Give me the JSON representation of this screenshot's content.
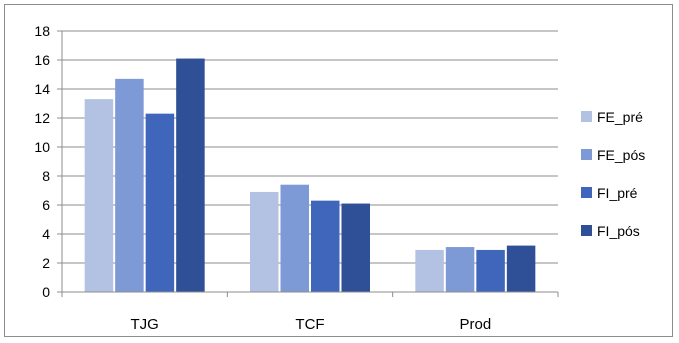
{
  "chart_data": {
    "type": "bar",
    "title": "",
    "xlabel": "",
    "ylabel": "",
    "categories": [
      "TJG",
      "TCF",
      "Prod"
    ],
    "series": [
      {
        "name": "FE_pré",
        "values": [
          13.3,
          6.9,
          2.9
        ],
        "color": "#B3C2E3"
      },
      {
        "name": "FE_pós",
        "values": [
          14.7,
          7.4,
          3.1
        ],
        "color": "#7E9AD6"
      },
      {
        "name": "FI_pré",
        "values": [
          12.3,
          6.3,
          2.9
        ],
        "color": "#4066BB"
      },
      {
        "name": "FI_pós",
        "values": [
          16.1,
          6.1,
          3.2
        ],
        "color": "#2F4F96"
      }
    ],
    "ylim": [
      0,
      18
    ],
    "yticks": [
      0,
      2,
      4,
      6,
      8,
      10,
      12,
      14,
      16,
      18
    ],
    "grid": true,
    "legend": "right"
  }
}
